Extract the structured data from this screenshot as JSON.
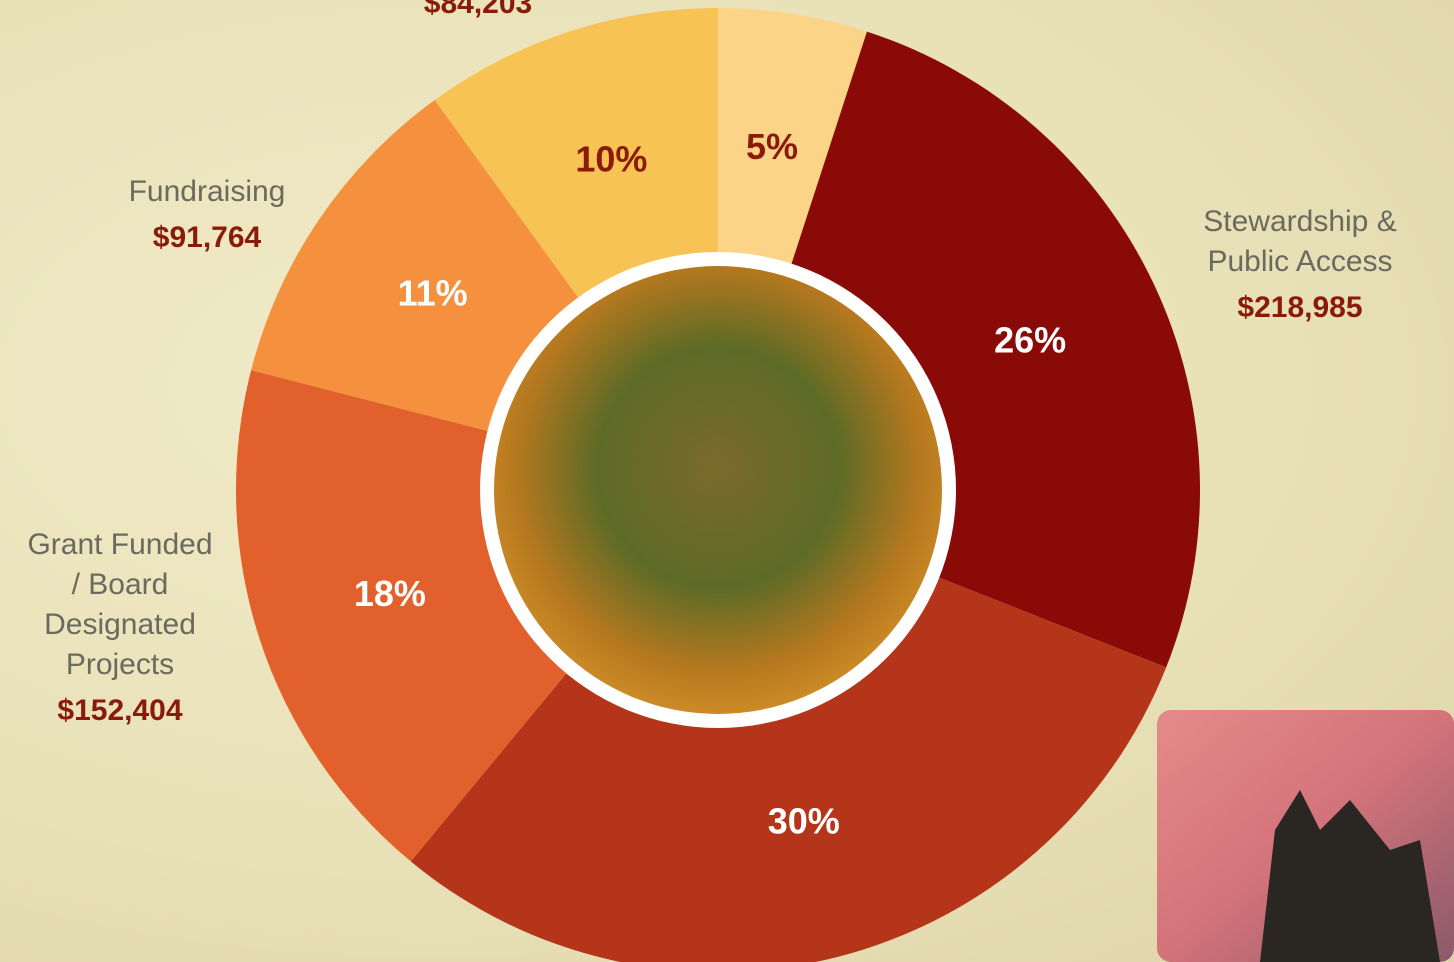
{
  "chart_data": {
    "type": "donut",
    "categories": [
      null,
      "Stewardship & Public Access",
      null,
      "Grant Funded / Board Designated Projects",
      "Fundraising",
      null
    ],
    "values": [
      5,
      26,
      30,
      18,
      11,
      10
    ],
    "value_labels": [
      "5%",
      "26%",
      "30%",
      "18%",
      "11%",
      "10%"
    ],
    "amounts": [
      null,
      218985,
      null,
      152404,
      91764,
      84203
    ],
    "amount_labels": [
      null,
      "$218,985",
      null,
      "$152,404",
      "$91,764",
      "$84,203"
    ],
    "colors": [
      "#fbd488",
      "#8a0a07",
      "#b5351a",
      "#e2602b",
      "#f4903e",
      "#f7c355"
    ],
    "label_colors": [
      "#8a1a0a",
      "#ffffff",
      "#ffffff",
      "#ffffff",
      "#ffffff",
      "#8a1a0a"
    ]
  }
}
